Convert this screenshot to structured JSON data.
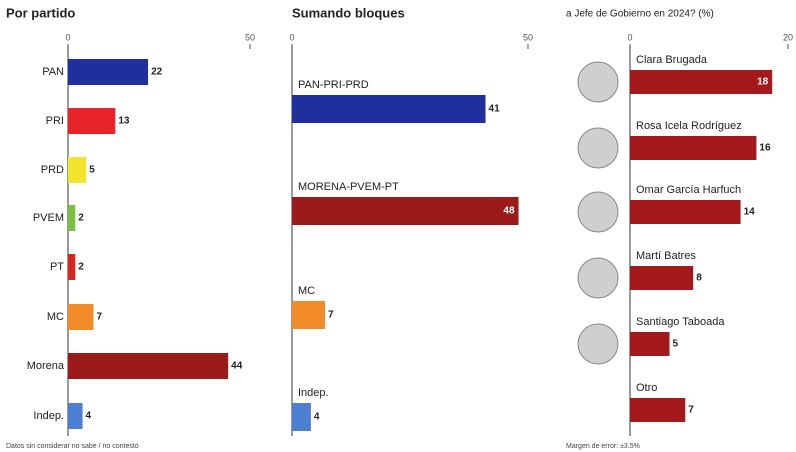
{
  "chart_data": [
    {
      "type": "bar",
      "orientation": "horizontal",
      "title": "Por partido",
      "categories": [
        "PAN",
        "PRI",
        "PRD",
        "PVEM",
        "PT",
        "MC",
        "Morena",
        "Indep."
      ],
      "values": [
        22,
        13,
        5,
        2,
        2,
        7,
        44,
        4
      ],
      "colors": [
        "#1f2f9e",
        "#e8232a",
        "#f3e52c",
        "#7ac142",
        "#d4261f",
        "#f28c28",
        "#9b1b1b",
        "#4a7fd1"
      ],
      "xlim": [
        0,
        50
      ],
      "xticks": [
        0,
        50
      ],
      "note": "Datos sin considerar no sabe / no contestó"
    },
    {
      "type": "bar",
      "orientation": "horizontal",
      "title": "Sumando bloques",
      "categories": [
        "PAN-PRI-PRD",
        "MORENA-PVEM-PT",
        "MC",
        "Indep."
      ],
      "values": [
        41,
        48,
        7,
        4
      ],
      "colors": [
        "#1f2f9e",
        "#9b1b1b",
        "#f28c28",
        "#4a7fd1"
      ],
      "xlim": [
        0,
        50
      ],
      "xticks": [
        0,
        50
      ]
    },
    {
      "type": "bar",
      "orientation": "horizontal",
      "title": "a Jefe de Gobierno en 2024? (%)",
      "categories": [
        "Clara Brugada",
        "Rosa Icela Rodríguez",
        "Omar García Harfuch",
        "Martí Batres",
        "Santiago Taboada",
        "Otro"
      ],
      "values": [
        18,
        16,
        14,
        8,
        5,
        7
      ],
      "colors": [
        "#a3191c",
        "#a3191c",
        "#a3191c",
        "#a3191c",
        "#a3191c",
        "#a3191c"
      ],
      "xlim": [
        0,
        20
      ],
      "xticks": [
        0,
        20
      ],
      "note": "Margen de error: ±3.5%"
    }
  ]
}
